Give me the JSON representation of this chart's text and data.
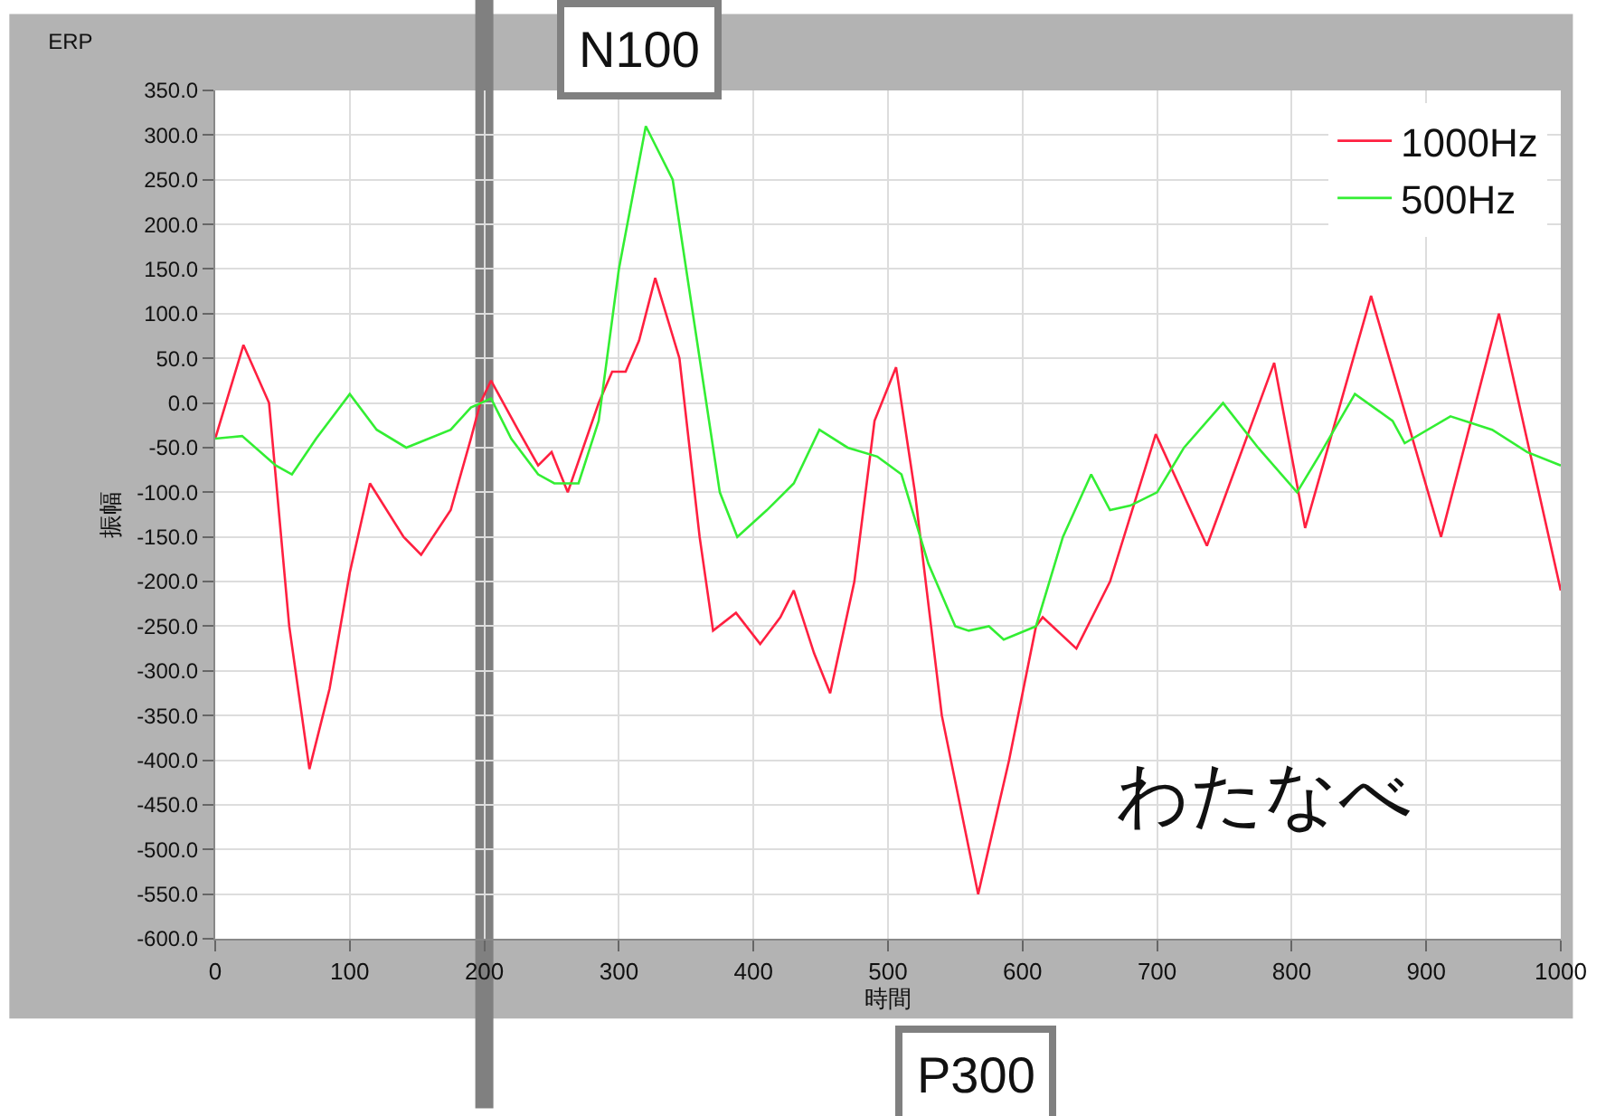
{
  "chart_data": {
    "type": "line",
    "title": "ERP",
    "xlabel": "時間",
    "ylabel": "振幅",
    "annotations": [
      "N100",
      "P300",
      "わたなべ"
    ],
    "series": [
      {
        "name": "1000Hz",
        "color": "#ff2040",
        "x": [
          0,
          21,
          40,
          55,
          70,
          85,
          100,
          115,
          140,
          153,
          175,
          190,
          197,
          205,
          225,
          240,
          250,
          262,
          285,
          295,
          305,
          315,
          327,
          345,
          360,
          370,
          387,
          405,
          420,
          430,
          445,
          457,
          475,
          490,
          506,
          520,
          540,
          567,
          590,
          610,
          615,
          640,
          665,
          699,
          737,
          787,
          810,
          859,
          911,
          954,
          1000
        ],
        "values": [
          -40,
          65,
          0,
          -250,
          -410,
          -320,
          -190,
          -90,
          -150,
          -170,
          -120,
          -40,
          0,
          25,
          -30,
          -70,
          -55,
          -100,
          0,
          35,
          35,
          70,
          140,
          50,
          -150,
          -255,
          -235,
          -270,
          -240,
          -210,
          -280,
          -325,
          -200,
          -20,
          40,
          -100,
          -350,
          -550,
          -400,
          -250,
          -240,
          -275,
          -200,
          -35,
          -160,
          45,
          -140,
          120,
          -150,
          100,
          -210
        ]
      },
      {
        "name": "500Hz",
        "color": "#33ee33",
        "x": [
          0,
          20,
          45,
          57,
          75,
          100,
          120,
          142,
          175,
          190,
          205,
          220,
          240,
          252,
          270,
          285,
          300,
          320,
          340,
          360,
          375,
          388,
          410,
          430,
          449,
          470,
          492,
          510,
          530,
          550,
          560,
          575,
          586,
          610,
          630,
          651,
          665,
          680,
          700,
          720,
          749,
          775,
          804,
          820,
          847,
          875,
          884,
          918,
          949,
          975,
          1000
        ],
        "values": [
          -40,
          -37,
          -70,
          -80,
          -40,
          10,
          -30,
          -50,
          -30,
          -5,
          5,
          -40,
          -80,
          -90,
          -90,
          -20,
          150,
          310,
          250,
          50,
          -100,
          -150,
          -120,
          -90,
          -30,
          -50,
          -60,
          -80,
          -180,
          -250,
          -255,
          -250,
          -265,
          -250,
          -150,
          -80,
          -120,
          -115,
          -100,
          -50,
          0,
          -50,
          -100,
          -60,
          10,
          -20,
          -45,
          -15,
          -30,
          -55,
          -70
        ]
      }
    ],
    "xlim": [
      0,
      1000
    ],
    "xticks": [
      0,
      100,
      200,
      300,
      400,
      500,
      600,
      700,
      800,
      900,
      1000
    ],
    "ylim": [
      -600,
      350
    ],
    "yticks": [
      {
        "value": 350,
        "label": "350.0"
      },
      {
        "value": 300,
        "label": "300.0"
      },
      {
        "value": 250,
        "label": "250.0"
      },
      {
        "value": 200,
        "label": "200.0"
      },
      {
        "value": 150,
        "label": "150.0"
      },
      {
        "value": 100,
        "label": "100.0"
      },
      {
        "value": 50,
        "label": "50.0"
      },
      {
        "value": 0,
        "label": "0.0"
      },
      {
        "value": -50,
        "label": "-50.0"
      },
      {
        "value": -100,
        "label": "-100.0"
      },
      {
        "value": -150,
        "label": "-150.0"
      },
      {
        "value": -200,
        "label": "-200.0"
      },
      {
        "value": -250,
        "label": "-250.0"
      },
      {
        "value": -300,
        "label": "-300.0"
      },
      {
        "value": -350,
        "label": "-350.0"
      },
      {
        "value": -400,
        "label": "-400.0"
      },
      {
        "value": -450,
        "label": "-450.0"
      },
      {
        "value": -500,
        "label": "-500.0"
      },
      {
        "value": -550,
        "label": "-550.0"
      },
      {
        "value": -600,
        "label": "-600.0"
      }
    ],
    "ref_lines": [
      {
        "axis": "x",
        "value": 200,
        "color": "#808080"
      }
    ],
    "grid": true,
    "legend": "top right",
    "line_style": "solid"
  }
}
